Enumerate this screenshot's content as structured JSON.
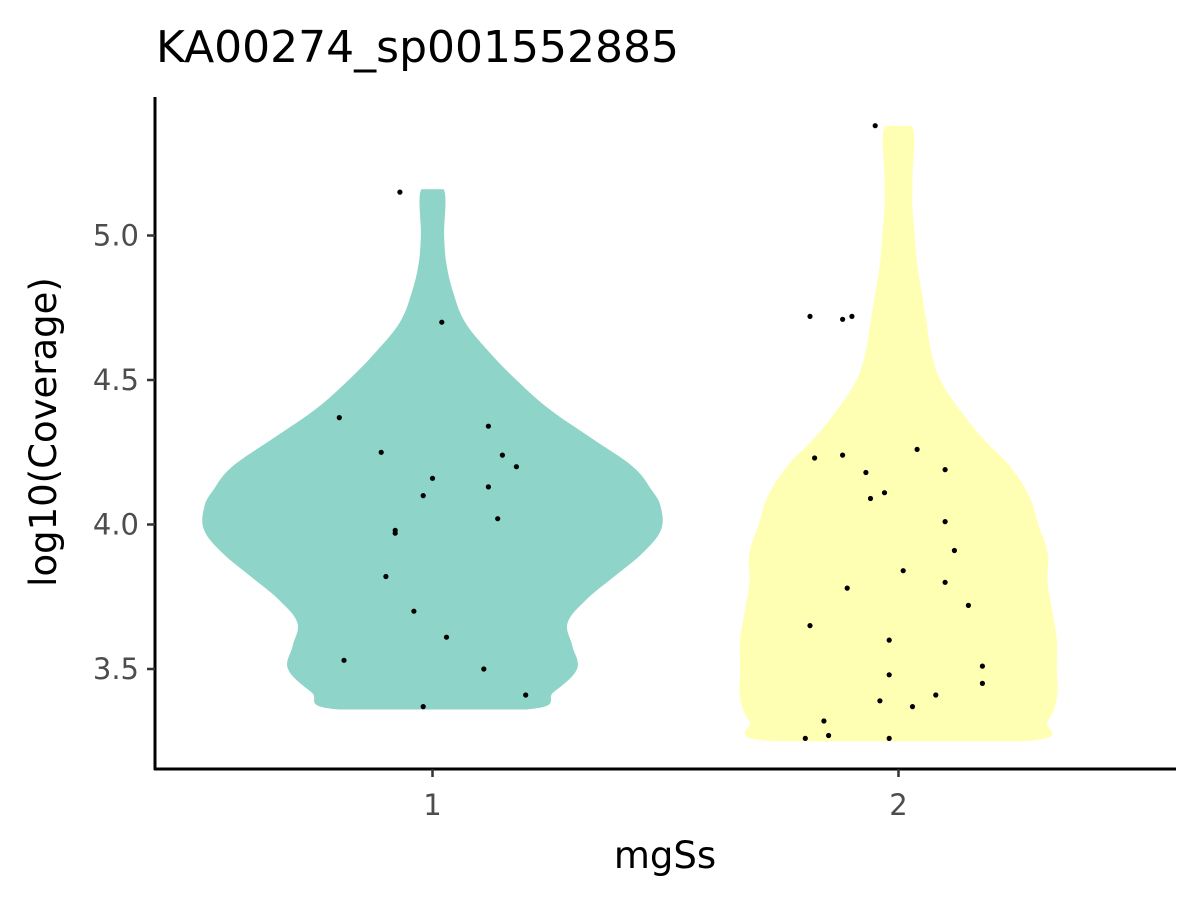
{
  "chart_data": {
    "type": "violin",
    "title": "KA00274_sp001552885",
    "xlabel": "mgSs",
    "ylabel": "log10(Coverage)",
    "categories": [
      "1",
      "2"
    ],
    "ylim": [
      3.2,
      5.4
    ],
    "yticks": [
      3.5,
      4.0,
      4.5,
      5.0
    ],
    "ytick_labels": [
      "3.5",
      "4.0",
      "4.5",
      "5.0"
    ],
    "grid": false,
    "legend": "none",
    "series": [
      {
        "category": "1",
        "color": "#8ed4c8",
        "y_range": [
          3.36,
          5.16
        ],
        "density_profile": [
          [
            3.36,
            0.2
          ],
          [
            3.42,
            0.26
          ],
          [
            3.5,
            0.31
          ],
          [
            3.58,
            0.3
          ],
          [
            3.66,
            0.29
          ],
          [
            3.74,
            0.33
          ],
          [
            3.82,
            0.39
          ],
          [
            3.9,
            0.45
          ],
          [
            3.98,
            0.49
          ],
          [
            4.06,
            0.49
          ],
          [
            4.12,
            0.47
          ],
          [
            4.2,
            0.43
          ],
          [
            4.3,
            0.34
          ],
          [
            4.4,
            0.25
          ],
          [
            4.5,
            0.18
          ],
          [
            4.6,
            0.12
          ],
          [
            4.7,
            0.07
          ],
          [
            4.8,
            0.045
          ],
          [
            4.9,
            0.03
          ],
          [
            5.0,
            0.025
          ],
          [
            5.16,
            0.024
          ]
        ],
        "points": [
          [
            5.15,
            0.93
          ],
          [
            4.7,
            1.02
          ],
          [
            4.37,
            0.8
          ],
          [
            4.34,
            1.12
          ],
          [
            4.25,
            0.89
          ],
          [
            4.24,
            1.15
          ],
          [
            4.2,
            1.18
          ],
          [
            4.16,
            1.0
          ],
          [
            4.13,
            1.12
          ],
          [
            4.1,
            0.98
          ],
          [
            4.02,
            1.14
          ],
          [
            3.98,
            0.92
          ],
          [
            3.97,
            0.92
          ],
          [
            3.82,
            0.9
          ],
          [
            3.7,
            0.96
          ],
          [
            3.61,
            1.03
          ],
          [
            3.53,
            0.81
          ],
          [
            3.5,
            1.11
          ],
          [
            3.41,
            1.2
          ],
          [
            3.37,
            0.98
          ]
        ]
      },
      {
        "category": "2",
        "color": "#ffffb3",
        "y_range": [
          3.25,
          5.38
        ],
        "density_profile": [
          [
            3.25,
            0.27
          ],
          [
            3.32,
            0.32
          ],
          [
            3.4,
            0.34
          ],
          [
            3.5,
            0.34
          ],
          [
            3.6,
            0.34
          ],
          [
            3.7,
            0.33
          ],
          [
            3.8,
            0.32
          ],
          [
            3.9,
            0.32
          ],
          [
            4.0,
            0.3
          ],
          [
            4.1,
            0.28
          ],
          [
            4.2,
            0.24
          ],
          [
            4.3,
            0.18
          ],
          [
            4.4,
            0.13
          ],
          [
            4.5,
            0.09
          ],
          [
            4.6,
            0.07
          ],
          [
            4.7,
            0.06
          ],
          [
            4.8,
            0.05
          ],
          [
            4.9,
            0.04
          ],
          [
            5.0,
            0.035
          ],
          [
            5.1,
            0.03
          ],
          [
            5.2,
            0.03
          ],
          [
            5.38,
            0.029
          ]
        ],
        "points": [
          [
            5.38,
            1.95
          ],
          [
            4.72,
            1.81
          ],
          [
            4.72,
            1.9
          ],
          [
            4.71,
            1.88
          ],
          [
            4.26,
            2.04
          ],
          [
            4.24,
            1.88
          ],
          [
            4.23,
            1.82
          ],
          [
            4.19,
            2.1
          ],
          [
            4.18,
            1.93
          ],
          [
            4.11,
            1.97
          ],
          [
            4.09,
            1.94
          ],
          [
            4.01,
            2.1
          ],
          [
            3.91,
            2.12
          ],
          [
            3.84,
            2.01
          ],
          [
            3.8,
            2.1
          ],
          [
            3.78,
            1.89
          ],
          [
            3.72,
            2.15
          ],
          [
            3.65,
            1.81
          ],
          [
            3.6,
            1.98
          ],
          [
            3.51,
            2.18
          ],
          [
            3.48,
            1.98
          ],
          [
            3.45,
            2.18
          ],
          [
            3.41,
            2.08
          ],
          [
            3.39,
            1.96
          ],
          [
            3.37,
            2.03
          ],
          [
            3.32,
            1.84
          ],
          [
            3.27,
            1.85
          ],
          [
            3.26,
            1.8
          ],
          [
            3.26,
            1.98
          ]
        ]
      }
    ]
  }
}
